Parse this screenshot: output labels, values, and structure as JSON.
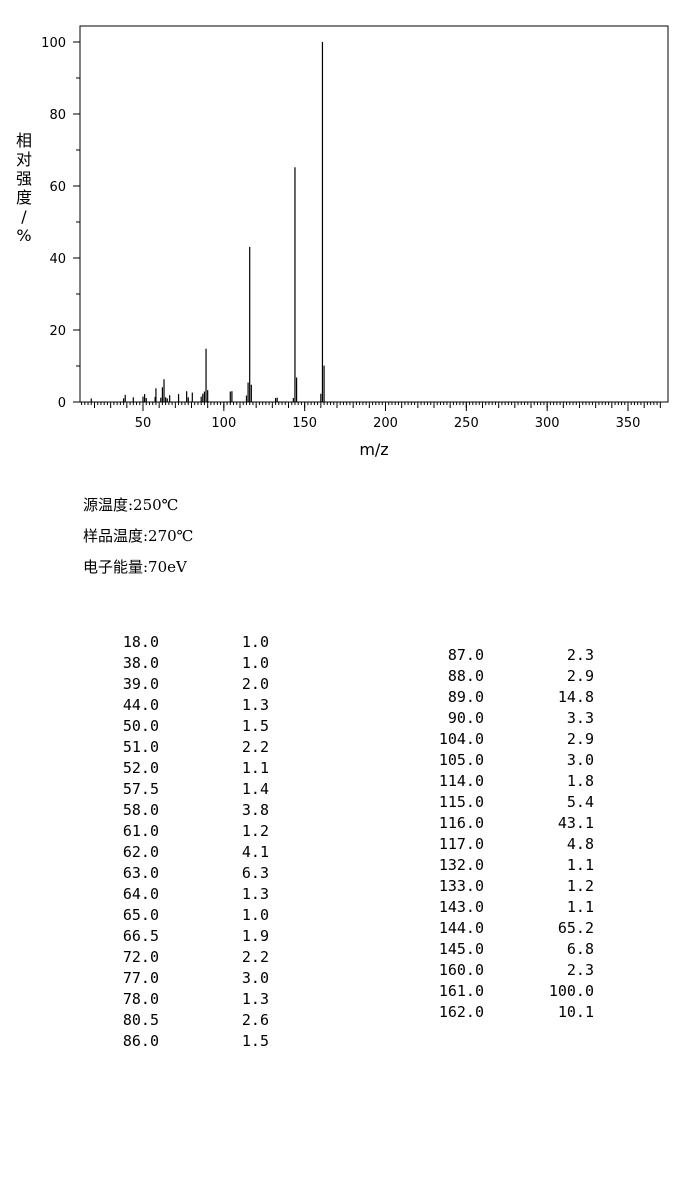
{
  "chart_data": {
    "type": "bar",
    "xlabel": "m/z",
    "ylabel": "相对强度/%",
    "xlim": [
      10,
      370
    ],
    "ylim": [
      0,
      105
    ],
    "xticks": [
      50,
      100,
      150,
      200,
      250,
      300,
      350
    ],
    "yticks": [
      0,
      20,
      40,
      60,
      80,
      100
    ],
    "grid": false,
    "peaks": [
      {
        "mz": 18.0,
        "intensity": 1.0
      },
      {
        "mz": 38.0,
        "intensity": 1.0
      },
      {
        "mz": 39.0,
        "intensity": 2.0
      },
      {
        "mz": 44.0,
        "intensity": 1.3
      },
      {
        "mz": 50.0,
        "intensity": 1.5
      },
      {
        "mz": 51.0,
        "intensity": 2.2
      },
      {
        "mz": 52.0,
        "intensity": 1.1
      },
      {
        "mz": 57.5,
        "intensity": 1.4
      },
      {
        "mz": 58.0,
        "intensity": 3.8
      },
      {
        "mz": 61.0,
        "intensity": 1.2
      },
      {
        "mz": 62.0,
        "intensity": 4.1
      },
      {
        "mz": 63.0,
        "intensity": 6.3
      },
      {
        "mz": 64.0,
        "intensity": 1.3
      },
      {
        "mz": 65.0,
        "intensity": 1.0
      },
      {
        "mz": 66.5,
        "intensity": 1.9
      },
      {
        "mz": 72.0,
        "intensity": 2.2
      },
      {
        "mz": 77.0,
        "intensity": 3.0
      },
      {
        "mz": 78.0,
        "intensity": 1.3
      },
      {
        "mz": 80.5,
        "intensity": 2.6
      },
      {
        "mz": 86.0,
        "intensity": 1.5
      },
      {
        "mz": 87.0,
        "intensity": 2.3
      },
      {
        "mz": 88.0,
        "intensity": 2.9
      },
      {
        "mz": 89.0,
        "intensity": 14.8
      },
      {
        "mz": 90.0,
        "intensity": 3.3
      },
      {
        "mz": 104.0,
        "intensity": 2.9
      },
      {
        "mz": 105.0,
        "intensity": 3.0
      },
      {
        "mz": 114.0,
        "intensity": 1.8
      },
      {
        "mz": 115.0,
        "intensity": 5.4
      },
      {
        "mz": 116.0,
        "intensity": 43.1
      },
      {
        "mz": 117.0,
        "intensity": 4.8
      },
      {
        "mz": 132.0,
        "intensity": 1.1
      },
      {
        "mz": 133.0,
        "intensity": 1.2
      },
      {
        "mz": 143.0,
        "intensity": 1.1
      },
      {
        "mz": 144.0,
        "intensity": 65.2
      },
      {
        "mz": 145.0,
        "intensity": 6.8
      },
      {
        "mz": 160.0,
        "intensity": 2.3
      },
      {
        "mz": 161.0,
        "intensity": 100.0
      },
      {
        "mz": 162.0,
        "intensity": 10.1
      }
    ]
  },
  "conditions": [
    "源温度:250℃",
    "样品温度:270℃",
    "电子能量:70eV"
  ],
  "table_left": [
    [
      "18.0",
      "1.0"
    ],
    [
      "38.0",
      "1.0"
    ],
    [
      "39.0",
      "2.0"
    ],
    [
      "44.0",
      "1.3"
    ],
    [
      "50.0",
      "1.5"
    ],
    [
      "51.0",
      "2.2"
    ],
    [
      "52.0",
      "1.1"
    ],
    [
      "57.5",
      "1.4"
    ],
    [
      "58.0",
      "3.8"
    ],
    [
      "61.0",
      "1.2"
    ],
    [
      "62.0",
      "4.1"
    ],
    [
      "63.0",
      "6.3"
    ],
    [
      "64.0",
      "1.3"
    ],
    [
      "65.0",
      "1.0"
    ],
    [
      "66.5",
      "1.9"
    ],
    [
      "72.0",
      "2.2"
    ],
    [
      "77.0",
      "3.0"
    ],
    [
      "78.0",
      "1.3"
    ],
    [
      "80.5",
      "2.6"
    ],
    [
      "86.0",
      "1.5"
    ]
  ],
  "table_right": [
    [
      "87.0",
      "2.3"
    ],
    [
      "88.0",
      "2.9"
    ],
    [
      "89.0",
      "14.8"
    ],
    [
      "90.0",
      "3.3"
    ],
    [
      "104.0",
      "2.9"
    ],
    [
      "105.0",
      "3.0"
    ],
    [
      "114.0",
      "1.8"
    ],
    [
      "115.0",
      "5.4"
    ],
    [
      "116.0",
      "43.1"
    ],
    [
      "117.0",
      "4.8"
    ],
    [
      "132.0",
      "1.1"
    ],
    [
      "133.0",
      "1.2"
    ],
    [
      "143.0",
      "1.1"
    ],
    [
      "144.0",
      "65.2"
    ],
    [
      "145.0",
      "6.8"
    ],
    [
      "160.0",
      "2.3"
    ],
    [
      "161.0",
      "100.0"
    ],
    [
      "162.0",
      "10.1"
    ]
  ]
}
